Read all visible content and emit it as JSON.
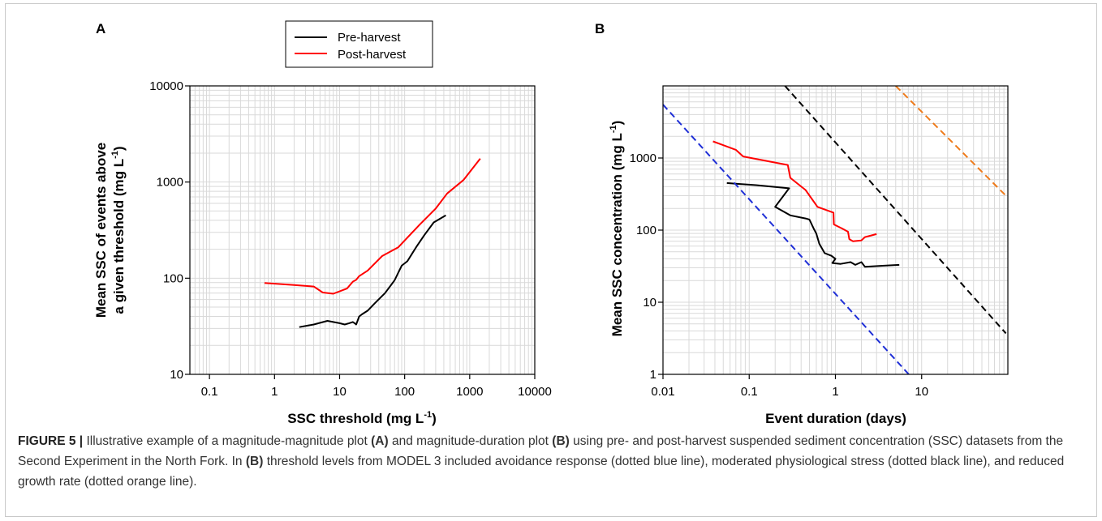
{
  "caption": {
    "figure_label": "FIGURE 5 |",
    "part1": " Illustrative example of a magnitude-magnitude plot ",
    "ref_a": "(A)",
    "part2": " and magnitude-duration plot ",
    "ref_b1": "(B)",
    "part3": " using pre- and post-harvest suspended sediment concentration (SSC) datasets from the Second Experiment in the North Fork. In ",
    "ref_b2": "(B)",
    "part4": " threshold levels from MODEL 3 included avoidance response (dotted blue line), moderated physiological stress (dotted black line), and reduced growth rate (dotted orange line)."
  },
  "colors": {
    "pre_harvest": "#000000",
    "post_harvest": "#ff0000",
    "avoidance": "#1f2fd6",
    "stress": "#000000",
    "growth": "#ee7a1a",
    "grid": "#d9d9d9"
  },
  "legend": {
    "items": [
      {
        "label": "Pre-harvest",
        "color": "#000000"
      },
      {
        "label": "Post-harvest",
        "color": "#ff0000"
      }
    ]
  },
  "chart_data": [
    {
      "panel": "A",
      "type": "line",
      "xlabel": "SSC threshold (mg L",
      "xlabel_sup": "-1",
      "xlabel_end": ")",
      "ylabel_line1": "Mean SSC of events above",
      "ylabel_line2": "a given threshold (mg L",
      "ylabel_sup": "-1",
      "ylabel_end": ")",
      "x_scale": "log",
      "y_scale": "log",
      "xlim": [
        0.05,
        10000
      ],
      "ylim": [
        10,
        10000
      ],
      "x_ticks": [
        0.1,
        1,
        10,
        100,
        1000,
        10000
      ],
      "x_tick_labels": [
        "0.1",
        "1",
        "10",
        "100",
        "1000",
        "10000"
      ],
      "y_ticks": [
        10,
        100,
        1000,
        10000
      ],
      "y_tick_labels": [
        "10",
        "100",
        "1000",
        "10000"
      ],
      "grid": true,
      "series": [
        {
          "name": "Pre-harvest",
          "color": "#000000",
          "x": [
            2.4,
            4,
            6.5,
            10,
            12,
            14,
            16,
            17,
            18,
            20,
            22,
            27,
            35,
            50,
            70,
            90,
            110,
            150,
            200,
            280,
            430
          ],
          "y": [
            31,
            33,
            36,
            34,
            33,
            34,
            35,
            34,
            33,
            40,
            42,
            46,
            55,
            70,
            95,
            135,
            150,
            210,
            280,
            380,
            450
          ]
        },
        {
          "name": "Post-harvest",
          "color": "#ff0000",
          "x": [
            0.7,
            2,
            4,
            5.5,
            8,
            10,
            13,
            16,
            18,
            20,
            27,
            45,
            80,
            170,
            300,
            450,
            800,
            1450
          ],
          "y": [
            89,
            85,
            82,
            71,
            69,
            73,
            78,
            92,
            96,
            105,
            120,
            170,
            210,
            360,
            530,
            760,
            1050,
            1750
          ]
        }
      ]
    },
    {
      "panel": "B",
      "type": "line",
      "xlabel": "Event duration (days)",
      "ylabel": "Mean SSC concentration (mg L",
      "ylabel_sup": "-1",
      "ylabel_end": ")",
      "x_scale": "log",
      "y_scale": "log",
      "xlim": [
        0.01,
        100
      ],
      "ylim": [
        1,
        10000
      ],
      "x_ticks": [
        0.01,
        0.1,
        1,
        10
      ],
      "x_tick_labels": [
        "0.01",
        "0.1",
        "1",
        "10"
      ],
      "y_ticks": [
        1,
        10,
        100,
        1000
      ],
      "y_tick_labels": [
        "1",
        "10",
        "100",
        "1000"
      ],
      "grid": true,
      "series": [
        {
          "name": "Pre-harvest",
          "color": "#000000",
          "x": [
            0.055,
            0.07,
            0.12,
            0.29,
            0.2,
            0.3,
            0.45,
            0.5,
            0.56,
            0.6,
            0.65,
            0.75,
            0.9,
            1.0,
            0.92,
            1.15,
            1.5,
            1.7,
            2.0,
            2.2,
            3.5,
            5.5
          ],
          "y": [
            450,
            440,
            420,
            380,
            210,
            160,
            145,
            140,
            105,
            90,
            65,
            48,
            44,
            40,
            35,
            34,
            36,
            33,
            36,
            31,
            32,
            33
          ]
        },
        {
          "name": "Post-harvest",
          "color": "#ff0000",
          "x": [
            0.038,
            0.07,
            0.085,
            0.28,
            0.3,
            0.45,
            0.62,
            0.95,
            0.96,
            1.2,
            1.4,
            1.45,
            1.6,
            2.0,
            2.2,
            3.0
          ],
          "y": [
            1700,
            1300,
            1050,
            800,
            530,
            360,
            210,
            175,
            120,
            105,
            95,
            75,
            70,
            72,
            80,
            88
          ]
        },
        {
          "name": "Avoidance response",
          "color": "#1f2fd6",
          "style": "dashed",
          "x": [
            0.01,
            7.1
          ],
          "y": [
            5500,
            1
          ]
        },
        {
          "name": "Moderated physiological stress",
          "color": "#000000",
          "style": "dashed",
          "x": [
            0.26,
            95
          ],
          "y": [
            10000,
            3.7
          ]
        },
        {
          "name": "Reduced growth rate",
          "color": "#ee7a1a",
          "style": "dashed",
          "x": [
            5.0,
            95
          ],
          "y": [
            10000,
            300
          ]
        }
      ]
    }
  ]
}
